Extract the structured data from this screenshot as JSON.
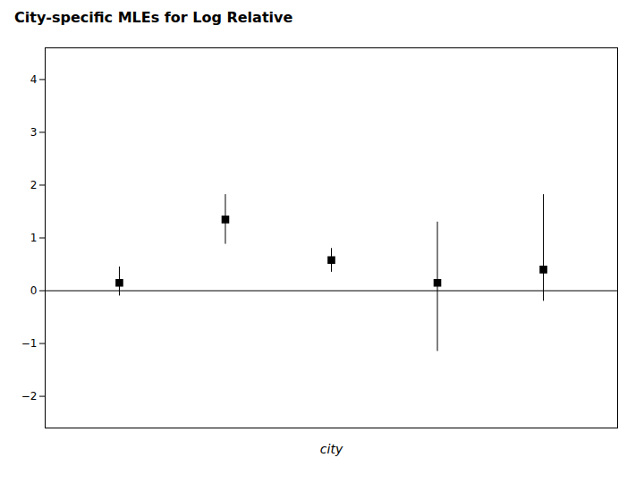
{
  "chart_data": {
    "type": "errorbar",
    "title": "City-specific MLEs for Log Relative",
    "xlabel": "city",
    "x": [
      1,
      2,
      3,
      4,
      5
    ],
    "values": [
      0.15,
      1.35,
      0.58,
      0.15,
      0.4
    ],
    "ci_low": [
      -0.1,
      0.88,
      0.35,
      -1.15,
      -0.2
    ],
    "ci_high": [
      0.45,
      1.82,
      0.8,
      1.3,
      1.82
    ],
    "reference_line": 0,
    "xlim": [
      0.3,
      5.7
    ],
    "ylim": [
      -2.6,
      4.6
    ],
    "yticks": [
      -2,
      -1,
      0,
      1,
      2,
      3,
      4
    ],
    "marker": "square",
    "color": "#000000",
    "tick_labels": "y"
  }
}
